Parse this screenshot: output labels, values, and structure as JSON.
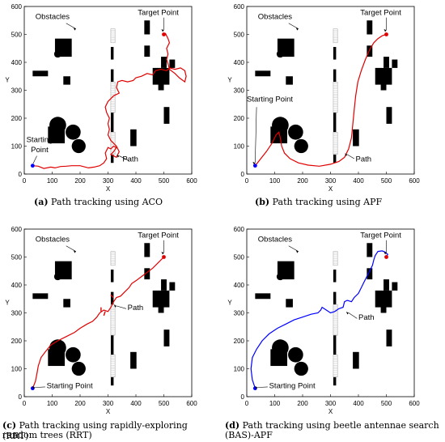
{
  "figure": {
    "colors": {
      "obstacle": "#000000",
      "striped": "#cfcfcf",
      "red_path": "#e00000",
      "blue_path": "#0000ff",
      "start": "#0000ff",
      "target": "#e00000"
    }
  },
  "chart_data": [
    {
      "type": "line",
      "panel": "a",
      "caption_letter": "(a)",
      "caption_text": "Path tracking using ACO",
      "xlabel": "X",
      "ylabel": "Y",
      "xlim": [
        0,
        600
      ],
      "ylim": [
        0,
        600
      ],
      "xticks": [
        "0",
        "100",
        "200",
        "300",
        "400",
        "500",
        "600"
      ],
      "yticks": [
        "0",
        "100",
        "200",
        "300",
        "400",
        "500",
        "600"
      ],
      "labels": {
        "obstacles": "Obstacles",
        "target": "Target Point",
        "start": "Starting Point",
        "path": "Path"
      },
      "path_color": "red",
      "start": [
        30,
        30
      ],
      "target": [
        500,
        500
      ],
      "path": [
        [
          30,
          30
        ],
        [
          50,
          28
        ],
        [
          70,
          20
        ],
        [
          95,
          25
        ],
        [
          110,
          22
        ],
        [
          130,
          27
        ],
        [
          150,
          28
        ],
        [
          170,
          30
        ],
        [
          200,
          30
        ],
        [
          230,
          22
        ],
        [
          250,
          25
        ],
        [
          270,
          30
        ],
        [
          285,
          40
        ],
        [
          295,
          55
        ],
        [
          290,
          75
        ],
        [
          300,
          95
        ],
        [
          310,
          90
        ],
        [
          320,
          100
        ],
        [
          330,
          95
        ],
        [
          320,
          80
        ],
        [
          310,
          70
        ],
        [
          330,
          60
        ],
        [
          340,
          80
        ],
        [
          330,
          100
        ],
        [
          310,
          120
        ],
        [
          300,
          140
        ],
        [
          305,
          160
        ],
        [
          300,
          180
        ],
        [
          305,
          200
        ],
        [
          295,
          220
        ],
        [
          290,
          240
        ],
        [
          300,
          260
        ],
        [
          320,
          280
        ],
        [
          340,
          290
        ],
        [
          330,
          310
        ],
        [
          335,
          330
        ],
        [
          350,
          335
        ],
        [
          370,
          330
        ],
        [
          390,
          335
        ],
        [
          400,
          345
        ],
        [
          420,
          350
        ],
        [
          440,
          360
        ],
        [
          460,
          355
        ],
        [
          470,
          370
        ],
        [
          490,
          375
        ],
        [
          510,
          370
        ],
        [
          520,
          380
        ],
        [
          540,
          375
        ],
        [
          560,
          380
        ],
        [
          575,
          370
        ],
        [
          580,
          350
        ],
        [
          575,
          330
        ],
        [
          555,
          345
        ],
        [
          540,
          360
        ],
        [
          520,
          375
        ],
        [
          515,
          395
        ],
        [
          510,
          410
        ],
        [
          515,
          430
        ],
        [
          510,
          450
        ],
        [
          520,
          470
        ],
        [
          515,
          485
        ],
        [
          510,
          495
        ],
        [
          505,
          505
        ]
      ]
    },
    {
      "type": "line",
      "panel": "b",
      "caption_letter": "(b)",
      "caption_text": "Path tracking using APF",
      "xlabel": "X",
      "ylabel": "Y",
      "xlim": [
        0,
        600
      ],
      "ylim": [
        0,
        600
      ],
      "xticks": [
        "0",
        "100",
        "200",
        "300",
        "400",
        "500",
        "600"
      ],
      "yticks": [
        "0",
        "100",
        "200",
        "300",
        "400",
        "500",
        "600"
      ],
      "labels": {
        "obstacles": "Obstacles",
        "target": "Target Point",
        "start": "Starting Point",
        "path": "Path"
      },
      "path_color": "red",
      "start": [
        30,
        30
      ],
      "target": [
        500,
        500
      ],
      "path": [
        [
          30,
          30
        ],
        [
          50,
          55
        ],
        [
          70,
          80
        ],
        [
          90,
          110
        ],
        [
          105,
          140
        ],
        [
          115,
          150
        ],
        [
          120,
          130
        ],
        [
          125,
          100
        ],
        [
          135,
          75
        ],
        [
          155,
          55
        ],
        [
          185,
          40
        ],
        [
          220,
          32
        ],
        [
          260,
          28
        ],
        [
          300,
          35
        ],
        [
          330,
          45
        ],
        [
          350,
          60
        ],
        [
          365,
          90
        ],
        [
          375,
          130
        ],
        [
          380,
          180
        ],
        [
          385,
          230
        ],
        [
          390,
          280
        ],
        [
          398,
          330
        ],
        [
          410,
          370
        ],
        [
          425,
          410
        ],
        [
          440,
          445
        ],
        [
          455,
          470
        ],
        [
          470,
          485
        ],
        [
          485,
          495
        ],
        [
          500,
          500
        ]
      ]
    },
    {
      "type": "line",
      "panel": "c",
      "caption_letter": "(c)",
      "caption_text": "Path tracking using rapidly-exploring random trees (RRT)",
      "xlabel": "X",
      "ylabel": "Y",
      "xlim": [
        0,
        600
      ],
      "ylim": [
        0,
        600
      ],
      "xticks": [
        "0",
        "100",
        "200",
        "300",
        "400",
        "500",
        "600"
      ],
      "yticks": [
        "0",
        "100",
        "200",
        "300",
        "400",
        "500",
        "600"
      ],
      "labels": {
        "obstacles": "Obstacles",
        "target": "Target Point",
        "start": "Starting Point",
        "path": "Path"
      },
      "path_color": "red",
      "start": [
        30,
        30
      ],
      "target": [
        500,
        500
      ],
      "path": [
        [
          30,
          30
        ],
        [
          40,
          55
        ],
        [
          45,
          80
        ],
        [
          50,
          110
        ],
        [
          60,
          140
        ],
        [
          75,
          160
        ],
        [
          95,
          185
        ],
        [
          120,
          200
        ],
        [
          150,
          215
        ],
        [
          180,
          230
        ],
        [
          200,
          245
        ],
        [
          225,
          260
        ],
        [
          245,
          270
        ],
        [
          260,
          285
        ],
        [
          270,
          300
        ],
        [
          285,
          310
        ],
        [
          300,
          305
        ],
        [
          310,
          320
        ],
        [
          320,
          340
        ],
        [
          330,
          355
        ],
        [
          345,
          360
        ],
        [
          360,
          375
        ],
        [
          375,
          390
        ],
        [
          385,
          405
        ],
        [
          400,
          415
        ],
        [
          420,
          430
        ],
        [
          440,
          445
        ],
        [
          460,
          460
        ],
        [
          480,
          480
        ],
        [
          500,
          500
        ]
      ],
      "spikes": [
        [
          [
            275,
            320
          ],
          [
            275,
            305
          ]
        ],
        [
          [
            290,
            305
          ],
          [
            285,
            290
          ]
        ],
        [
          [
            318,
            355
          ],
          [
            310,
            365
          ]
        ]
      ]
    },
    {
      "type": "line",
      "panel": "d",
      "caption_letter": "(d)",
      "caption_text": "Path tracking using beetle antennae search (BAS)-APF",
      "xlabel": "X",
      "ylabel": "Y",
      "xlim": [
        0,
        600
      ],
      "ylim": [
        0,
        600
      ],
      "xticks": [
        "0",
        "100",
        "200",
        "300",
        "400",
        "500",
        "600"
      ],
      "yticks": [
        "0",
        "100",
        "200",
        "300",
        "400",
        "500",
        "600"
      ],
      "labels": {
        "obstacles": "Obstacles",
        "target": "Target Point",
        "start": "Starting Point",
        "path": "Path"
      },
      "path_color": "blue",
      "start": [
        30,
        30
      ],
      "target": [
        500,
        500
      ],
      "path": [
        [
          30,
          30
        ],
        [
          20,
          60
        ],
        [
          15,
          100
        ],
        [
          20,
          140
        ],
        [
          35,
          170
        ],
        [
          55,
          200
        ],
        [
          80,
          225
        ],
        [
          110,
          245
        ],
        [
          140,
          260
        ],
        [
          170,
          275
        ],
        [
          200,
          285
        ],
        [
          230,
          295
        ],
        [
          255,
          300
        ],
        [
          265,
          310
        ],
        [
          270,
          320
        ],
        [
          285,
          310
        ],
        [
          300,
          300
        ],
        [
          315,
          305
        ],
        [
          330,
          315
        ],
        [
          345,
          320
        ],
        [
          350,
          340
        ],
        [
          360,
          345
        ],
        [
          375,
          340
        ],
        [
          385,
          355
        ],
        [
          400,
          370
        ],
        [
          410,
          390
        ],
        [
          420,
          410
        ],
        [
          430,
          430
        ],
        [
          440,
          450
        ],
        [
          450,
          470
        ],
        [
          455,
          490
        ],
        [
          460,
          505
        ],
        [
          470,
          520
        ],
        [
          485,
          522
        ],
        [
          495,
          518
        ],
        [
          505,
          510
        ],
        [
          500,
          500
        ]
      ]
    }
  ],
  "panel_c_caption_line2": "(RRT)"
}
